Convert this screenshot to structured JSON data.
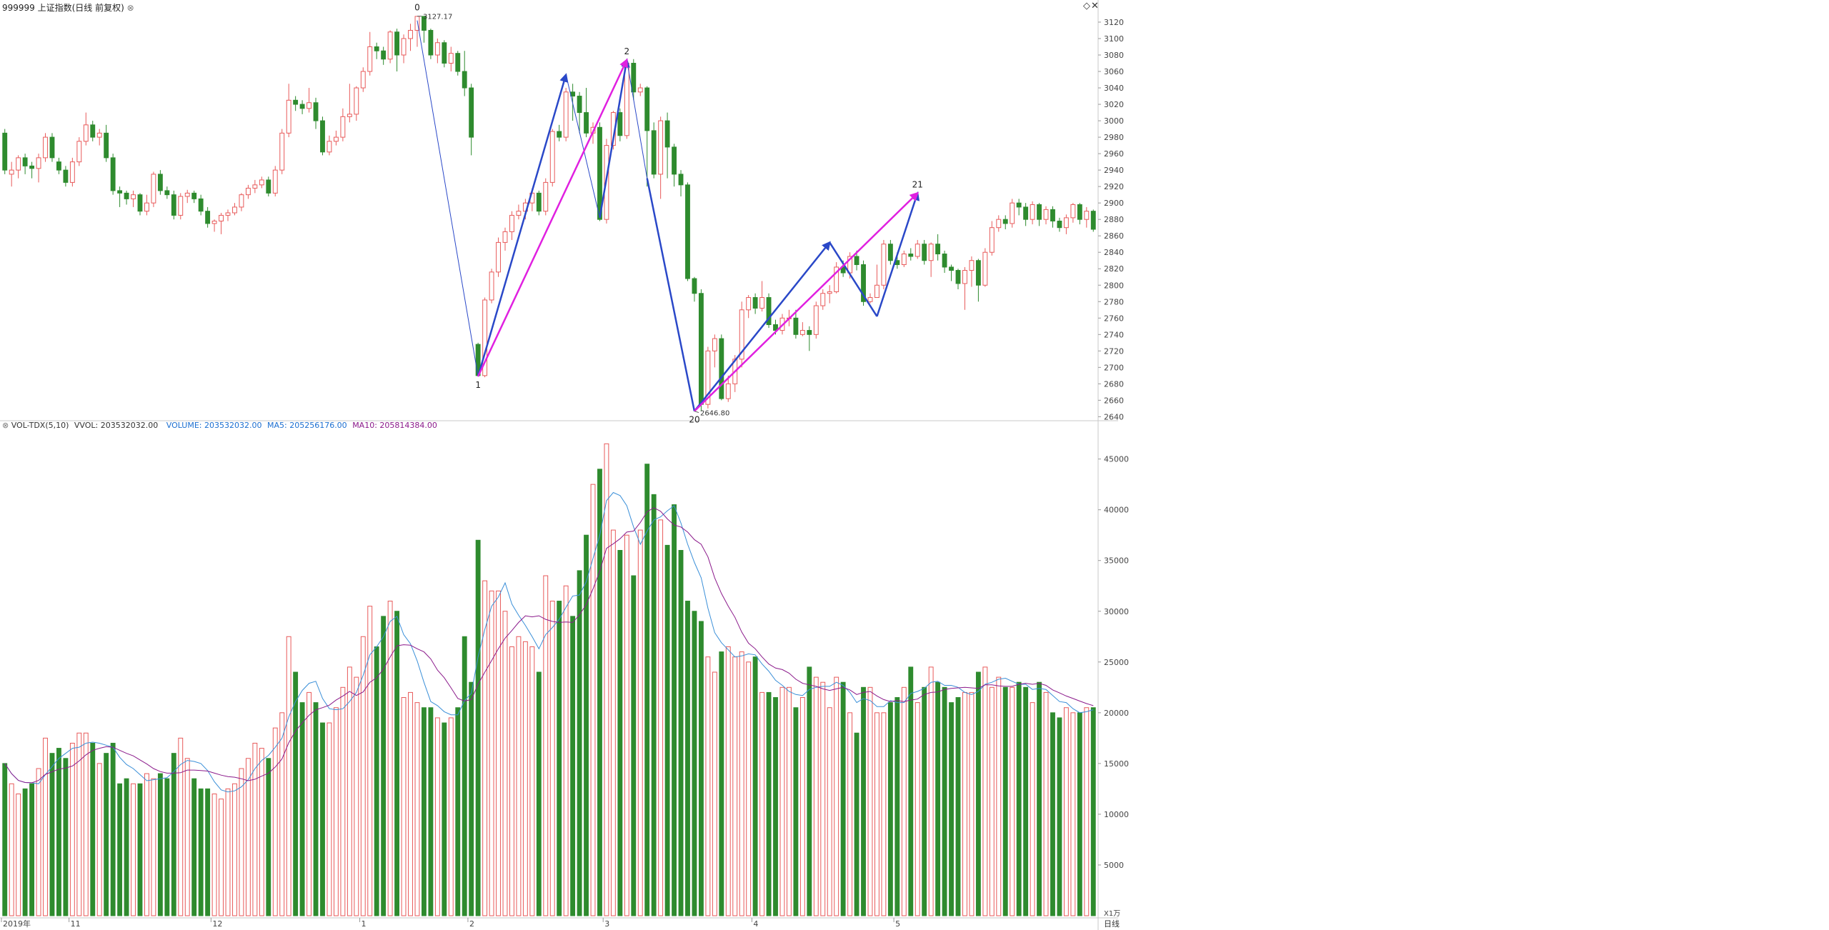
{
  "header": {
    "title": "999999 上证指数(日线 前复权)",
    "close_glyph": "⊗",
    "vol_label": "VOL-TDX(5,10)",
    "vvol_label": "VVOL: 203532032.00",
    "volume_label": "VOLUME: 203532032.00",
    "ma5_label": "MA5: 205256176.00",
    "ma10_label": "MA10: 205814384.00"
  },
  "toolbar": {
    "diamond_glyph": "◇",
    "close_glyph": "✕"
  },
  "colors": {
    "up": "#e85a5a",
    "down": "#2e8b2e",
    "wave": "#2a48c8",
    "wave_main": "#e020e0",
    "ma5": "#3a8fd8",
    "ma10": "#8b1a8b",
    "vol_label": "#1c6fd1",
    "ma10_label": "#8b1a8b"
  },
  "chart_data": {
    "type": "candlestick",
    "price_axis": {
      "range": [
        2636,
        3133
      ],
      "ticks": [
        2640,
        2660,
        2680,
        2700,
        2720,
        2740,
        2760,
        2780,
        2800,
        2820,
        2840,
        2860,
        2880,
        2900,
        2920,
        2940,
        2960,
        2980,
        3000,
        3020,
        3040,
        3060,
        3080,
        3100,
        3120
      ]
    },
    "volume_axis": {
      "range": [
        0,
        48000
      ],
      "unit_label": "X1万",
      "ticks": [
        5000,
        10000,
        15000,
        20000,
        25000,
        30000,
        35000,
        40000,
        45000
      ]
    },
    "period_label": "日线",
    "date_labels": [
      {
        "index": 0,
        "text": "2019年"
      },
      {
        "index": 10,
        "text": "11"
      },
      {
        "index": 31,
        "text": "12"
      },
      {
        "index": 53,
        "text": "1"
      },
      {
        "index": 69,
        "text": "2"
      },
      {
        "index": 89,
        "text": "3"
      },
      {
        "index": 111,
        "text": "4"
      },
      {
        "index": 132,
        "text": "5"
      }
    ],
    "annotations": [
      {
        "label": "0",
        "value_text": "3127.17",
        "index": 61,
        "price": 3127.17,
        "position": "above"
      },
      {
        "label": "1",
        "value_text": "",
        "index": 70,
        "price": 2689,
        "position": "below"
      },
      {
        "label": "2",
        "value_text": "",
        "index": 92,
        "price": 3074,
        "position": "above"
      },
      {
        "label": "20",
        "value_text": "2646.80",
        "index": 102,
        "price": 2646.8,
        "position": "below"
      },
      {
        "label": "21",
        "value_text": "",
        "index": 135,
        "price": 2912,
        "position": "above"
      }
    ],
    "wave_lines": [
      {
        "color": "wave",
        "thin": true,
        "arrow": false,
        "from": [
          61,
          3122
        ],
        "to": [
          70,
          2689
        ]
      },
      {
        "color": "wave",
        "thin": false,
        "arrow": true,
        "from": [
          70,
          2689
        ],
        "to": [
          83,
          3056
        ]
      },
      {
        "color": "wave",
        "thin": true,
        "arrow": false,
        "from": [
          83,
          3056
        ],
        "to": [
          88,
          2882
        ]
      },
      {
        "color": "wave",
        "thin": false,
        "arrow": true,
        "from": [
          88,
          2882
        ],
        "to": [
          92,
          3074
        ]
      },
      {
        "color": "wave",
        "thin": true,
        "arrow": false,
        "from": [
          92,
          3074
        ],
        "to": [
          95,
          2930
        ]
      },
      {
        "color": "wave",
        "thin": false,
        "arrow": false,
        "from": [
          95,
          2930
        ],
        "to": [
          102,
          2646.8
        ]
      },
      {
        "color": "wave",
        "thin": false,
        "arrow": true,
        "from": [
          102,
          2646.8
        ],
        "to": [
          122,
          2852
        ]
      },
      {
        "color": "wave",
        "thin": false,
        "arrow": false,
        "from": [
          122,
          2852
        ],
        "to": [
          129,
          2762
        ]
      },
      {
        "color": "wave",
        "thin": false,
        "arrow": true,
        "from": [
          129,
          2762
        ],
        "to": [
          135,
          2912
        ]
      },
      {
        "color": "wave_main",
        "thin": false,
        "arrow": true,
        "from": [
          70,
          2689
        ],
        "to": [
          92,
          3074
        ]
      },
      {
        "color": "wave_main",
        "thin": false,
        "arrow": true,
        "from": [
          102,
          2646.8
        ],
        "to": [
          135,
          2912
        ]
      }
    ],
    "candles": [
      [
        2985,
        2940,
        2990,
        2935,
        15000
      ],
      [
        2935,
        2940,
        2950,
        2920,
        13000
      ],
      [
        2940,
        2955,
        2958,
        2930,
        12000
      ],
      [
        2955,
        2945,
        2960,
        2935,
        12500
      ],
      [
        2945,
        2942,
        2950,
        2930,
        13000
      ],
      [
        2942,
        2955,
        2960,
        2925,
        14500
      ],
      [
        2955,
        2980,
        2985,
        2950,
        17500
      ],
      [
        2980,
        2955,
        2985,
        2950,
        16000
      ],
      [
        2950,
        2940,
        2955,
        2935,
        16500
      ],
      [
        2940,
        2925,
        2945,
        2920,
        15500
      ],
      [
        2925,
        2950,
        2955,
        2920,
        17000
      ],
      [
        2950,
        2975,
        2980,
        2945,
        18000
      ],
      [
        2975,
        2995,
        3010,
        2970,
        18000
      ],
      [
        2995,
        2980,
        3000,
        2975,
        17000
      ],
      [
        2980,
        2985,
        2990,
        2970,
        15000
      ],
      [
        2985,
        2955,
        2995,
        2950,
        16000
      ],
      [
        2955,
        2915,
        2960,
        2910,
        17000
      ],
      [
        2915,
        2912,
        2920,
        2895,
        13000
      ],
      [
        2912,
        2905,
        2915,
        2898,
        13500
      ],
      [
        2905,
        2910,
        2915,
        2895,
        13000
      ],
      [
        2910,
        2890,
        2912,
        2885,
        13000
      ],
      [
        2890,
        2900,
        2910,
        2885,
        14000
      ],
      [
        2900,
        2935,
        2938,
        2895,
        13500
      ],
      [
        2935,
        2915,
        2940,
        2910,
        14000
      ],
      [
        2915,
        2910,
        2920,
        2905,
        13500
      ],
      [
        2910,
        2885,
        2915,
        2880,
        16000
      ],
      [
        2885,
        2908,
        2912,
        2880,
        17500
      ],
      [
        2908,
        2912,
        2916,
        2900,
        15500
      ],
      [
        2912,
        2905,
        2915,
        2900,
        13500
      ],
      [
        2905,
        2890,
        2910,
        2885,
        12500
      ],
      [
        2890,
        2875,
        2895,
        2870,
        12500
      ],
      [
        2875,
        2878,
        2880,
        2865,
        12000
      ],
      [
        2878,
        2885,
        2888,
        2862,
        11500
      ],
      [
        2885,
        2888,
        2892,
        2878,
        12500
      ],
      [
        2888,
        2895,
        2900,
        2885,
        13000
      ],
      [
        2895,
        2910,
        2912,
        2890,
        14500
      ],
      [
        2910,
        2918,
        2922,
        2905,
        15500
      ],
      [
        2918,
        2922,
        2928,
        2912,
        17000
      ],
      [
        2922,
        2928,
        2932,
        2918,
        16500
      ],
      [
        2928,
        2912,
        2932,
        2908,
        15500
      ],
      [
        2912,
        2940,
        2945,
        2908,
        18500
      ],
      [
        2940,
        2985,
        2990,
        2935,
        20000
      ],
      [
        2985,
        3025,
        3045,
        2980,
        27500
      ],
      [
        3025,
        3020,
        3030,
        3012,
        24000
      ],
      [
        3020,
        3015,
        3025,
        3008,
        21000
      ],
      [
        3015,
        3022,
        3040,
        3010,
        22000
      ],
      [
        3022,
        3000,
        3028,
        2990,
        21000
      ],
      [
        3000,
        2962,
        3005,
        2958,
        19000
      ],
      [
        2962,
        2975,
        2982,
        2958,
        19000
      ],
      [
        2975,
        2980,
        2988,
        2970,
        20500
      ],
      [
        2980,
        3005,
        3015,
        2975,
        22500
      ],
      [
        3005,
        3008,
        3045,
        2998,
        24500
      ],
      [
        3008,
        3040,
        3042,
        3000,
        23500
      ],
      [
        3040,
        3060,
        3065,
        3035,
        27500
      ],
      [
        3060,
        3090,
        3108,
        3055,
        30500
      ],
      [
        3090,
        3085,
        3095,
        3075,
        26500
      ],
      [
        3085,
        3075,
        3090,
        3068,
        29500
      ],
      [
        3075,
        3108,
        3110,
        3070,
        31000
      ],
      [
        3108,
        3080,
        3112,
        3060,
        30000
      ],
      [
        3080,
        3100,
        3105,
        3070,
        21500
      ],
      [
        3100,
        3110,
        3118,
        3085,
        22000
      ],
      [
        3110,
        3127,
        3127.17,
        3090,
        21000
      ],
      [
        3127,
        3110,
        3118,
        3095,
        20500
      ],
      [
        3110,
        3080,
        3112,
        3075,
        20500
      ],
      [
        3080,
        3095,
        3100,
        3070,
        19500
      ],
      [
        3095,
        3070,
        3098,
        3065,
        19000
      ],
      [
        3070,
        3082,
        3090,
        3060,
        19500
      ],
      [
        3082,
        3060,
        3085,
        3055,
        20500
      ],
      [
        3060,
        3040,
        3085,
        3030,
        27500
      ],
      [
        3040,
        2980,
        3045,
        2958,
        23000
      ],
      [
        2728,
        2690,
        2730,
        2689,
        37000
      ],
      [
        2690,
        2782,
        2785,
        2688,
        33000
      ],
      [
        2782,
        2816,
        2820,
        2778,
        32000
      ],
      [
        2816,
        2852,
        2858,
        2810,
        32000
      ],
      [
        2852,
        2865,
        2870,
        2842,
        30000
      ],
      [
        2865,
        2885,
        2890,
        2855,
        26500
      ],
      [
        2885,
        2890,
        2898,
        2880,
        27500
      ],
      [
        2890,
        2900,
        2905,
        2880,
        27000
      ],
      [
        2900,
        2912,
        2918,
        2890,
        26500
      ],
      [
        2912,
        2890,
        2915,
        2885,
        24000
      ],
      [
        2890,
        2925,
        2930,
        2885,
        33500
      ],
      [
        2925,
        2987,
        2990,
        2920,
        31000
      ],
      [
        2987,
        2980,
        2995,
        2975,
        31000
      ],
      [
        2980,
        3035,
        3040,
        2975,
        32500
      ],
      [
        3035,
        3030,
        3045,
        3000,
        29500
      ],
      [
        3030,
        3010,
        3035,
        2985,
        34000
      ],
      [
        3010,
        2985,
        3040,
        2980,
        37500
      ],
      [
        2985,
        2992,
        2998,
        2972,
        42500
      ],
      [
        2992,
        2880,
        2998,
        2878,
        44000
      ],
      [
        2880,
        2970,
        2978,
        2875,
        46500
      ],
      [
        2970,
        3010,
        3012,
        2965,
        38000
      ],
      [
        3010,
        2982,
        3015,
        2975,
        36000
      ],
      [
        2982,
        3070,
        3074,
        2978,
        37500
      ],
      [
        3070,
        3035,
        3075,
        3025,
        33500
      ],
      [
        3035,
        3040,
        3045,
        3030,
        38000
      ],
      [
        3040,
        2988,
        3042,
        2920,
        44500
      ],
      [
        2988,
        2935,
        2998,
        2930,
        41500
      ],
      [
        2935,
        3000,
        3005,
        2905,
        39000
      ],
      [
        3000,
        2968,
        3010,
        2930,
        36500
      ],
      [
        2968,
        2935,
        2972,
        2920,
        40500
      ],
      [
        2935,
        2922,
        2940,
        2908,
        36000
      ],
      [
        2922,
        2808,
        2925,
        2805,
        31000
      ],
      [
        2808,
        2790,
        2810,
        2780,
        30000
      ],
      [
        2790,
        2655,
        2795,
        2646.8,
        29000
      ],
      [
        2655,
        2720,
        2725,
        2650,
        25500
      ],
      [
        2720,
        2735,
        2740,
        2700,
        24000
      ],
      [
        2735,
        2662,
        2740,
        2660,
        26000
      ],
      [
        2662,
        2680,
        2690,
        2658,
        26500
      ],
      [
        2680,
        2710,
        2715,
        2670,
        25500
      ],
      [
        2710,
        2770,
        2780,
        2700,
        26000
      ],
      [
        2770,
        2785,
        2788,
        2760,
        25000
      ],
      [
        2785,
        2772,
        2790,
        2765,
        25500
      ],
      [
        2772,
        2785,
        2805,
        2768,
        22000
      ],
      [
        2785,
        2752,
        2790,
        2748,
        22000
      ],
      [
        2752,
        2745,
        2758,
        2740,
        21500
      ],
      [
        2745,
        2760,
        2765,
        2740,
        22500
      ],
      [
        2760,
        2760,
        2770,
        2750,
        22500
      ],
      [
        2760,
        2740,
        2770,
        2735,
        20500
      ],
      [
        2740,
        2745,
        2755,
        2738,
        21500
      ],
      [
        2745,
        2740,
        2750,
        2720,
        24500
      ],
      [
        2740,
        2775,
        2780,
        2735,
        23500
      ],
      [
        2775,
        2790,
        2795,
        2770,
        23000
      ],
      [
        2790,
        2792,
        2800,
        2778,
        20500
      ],
      [
        2792,
        2822,
        2828,
        2790,
        23500
      ],
      [
        2822,
        2815,
        2830,
        2810,
        23000
      ],
      [
        2815,
        2835,
        2840,
        2808,
        20000
      ],
      [
        2835,
        2825,
        2842,
        2818,
        18000
      ],
      [
        2825,
        2780,
        2830,
        2775,
        22500
      ],
      [
        2780,
        2785,
        2790,
        2778,
        22500
      ],
      [
        2785,
        2800,
        2825,
        2795,
        20000
      ],
      [
        2800,
        2850,
        2855,
        2795,
        20000
      ],
      [
        2850,
        2830,
        2855,
        2825,
        21000
      ],
      [
        2830,
        2825,
        2840,
        2820,
        21500
      ],
      [
        2825,
        2838,
        2842,
        2822,
        22500
      ],
      [
        2838,
        2835,
        2845,
        2830,
        24500
      ],
      [
        2835,
        2850,
        2855,
        2832,
        21000
      ],
      [
        2850,
        2830,
        2855,
        2825,
        22500
      ],
      [
        2830,
        2850,
        2852,
        2810,
        24500
      ],
      [
        2850,
        2838,
        2862,
        2830,
        23000
      ],
      [
        2838,
        2822,
        2842,
        2815,
        22500
      ],
      [
        2822,
        2818,
        2825,
        2805,
        21000
      ],
      [
        2818,
        2802,
        2820,
        2795,
        21500
      ],
      [
        2802,
        2818,
        2822,
        2770,
        22000
      ],
      [
        2818,
        2830,
        2835,
        2798,
        22000
      ],
      [
        2830,
        2800,
        2832,
        2780,
        24000
      ],
      [
        2800,
        2840,
        2845,
        2798,
        24500
      ],
      [
        2840,
        2870,
        2878,
        2836,
        22500
      ],
      [
        2870,
        2880,
        2885,
        2865,
        23500
      ],
      [
        2880,
        2875,
        2885,
        2868,
        22500
      ],
      [
        2875,
        2900,
        2905,
        2870,
        22500
      ],
      [
        2900,
        2895,
        2905,
        2885,
        23000
      ],
      [
        2895,
        2880,
        2900,
        2872,
        22500
      ],
      [
        2880,
        2898,
        2902,
        2874,
        21000
      ],
      [
        2898,
        2880,
        2900,
        2872,
        23000
      ],
      [
        2880,
        2892,
        2896,
        2874,
        22000
      ],
      [
        2892,
        2878,
        2896,
        2870,
        20000
      ],
      [
        2878,
        2870,
        2882,
        2865,
        19500
      ],
      [
        2870,
        2882,
        2886,
        2862,
        20500
      ],
      [
        2882,
        2898,
        2900,
        2876,
        20000
      ],
      [
        2898,
        2880,
        2900,
        2874,
        20000
      ],
      [
        2880,
        2890,
        2895,
        2870,
        20500
      ],
      [
        2890,
        2868,
        2892,
        2865,
        20500
      ]
    ]
  }
}
